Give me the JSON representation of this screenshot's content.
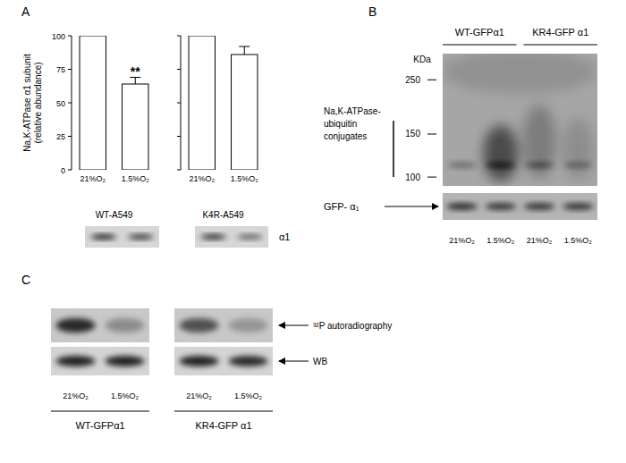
{
  "chart_data": [
    {
      "type": "bar",
      "subtitle": "WT-A549",
      "ylabel": [
        "Na,K-ATPase   α1 subunit",
        "(relative abundance)"
      ],
      "categories": [
        "21%O₂",
        "1.5%O₂"
      ],
      "values": [
        100,
        64
      ],
      "errors": [
        null,
        5
      ],
      "ylim": [
        0,
        100
      ],
      "yticks": [
        0,
        25,
        50,
        75,
        100
      ],
      "color": "#ffffff",
      "annotations": [
        {
          "text": "**",
          "category": "1.5%O₂"
        }
      ]
    },
    {
      "type": "bar",
      "subtitle": "K4R-A549",
      "categories": [
        "21%O₂",
        "1.5%O₂"
      ],
      "values": [
        100,
        86
      ],
      "errors": [
        null,
        6
      ],
      "ylim": [
        0,
        100
      ],
      "yticks": [
        0,
        25,
        50,
        75,
        100
      ],
      "tick_labels": "x",
      "color": "#ffffff"
    }
  ],
  "panels": {
    "a": {
      "label": "A",
      "blot_label": "α1"
    },
    "b": {
      "label": "B",
      "groups": [
        "WT-GFPα1",
        "KR4-GFP α1"
      ],
      "lanes": [
        "21%O₂",
        "1.5%O₂",
        "21%O₂",
        "1.5%O₂"
      ],
      "mw_title": "KDa",
      "ylim": [
        320,
        92
      ],
      "yticks": [
        250,
        150,
        100
      ],
      "log": "y",
      "bracket_label": [
        "Na,K-ATPase-",
        "ubiquitin",
        "conjugates"
      ],
      "strip_label": "GFP- α₁"
    },
    "c": {
      "label": "C",
      "groups": [
        "WT-GFPα1",
        "KR4-GFP α1"
      ],
      "lanes": [
        "21%O₂",
        "1.5%O₂",
        "21%O₂",
        "1.5%O₂"
      ],
      "rows": [
        "³²P autoradiography",
        "WB"
      ]
    }
  }
}
